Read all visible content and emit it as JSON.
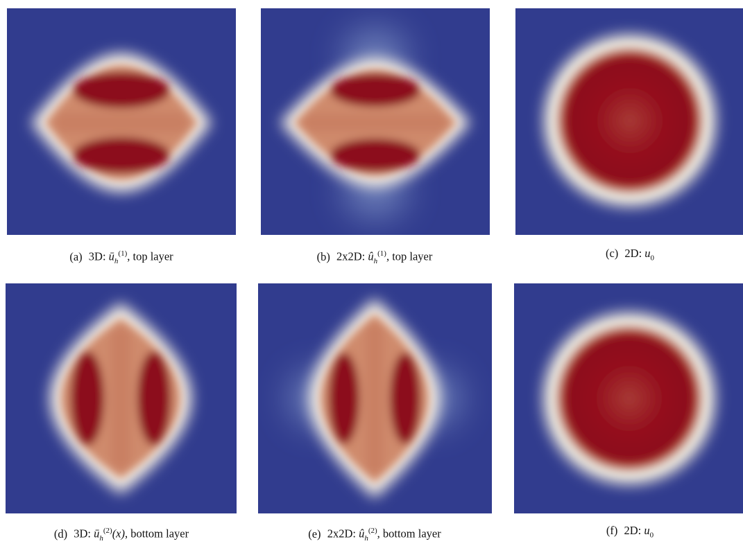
{
  "colors": {
    "background": "#313c8e",
    "high": "#8c0a1a",
    "mid": "#c87a5e",
    "edge": "#f2f0e8"
  },
  "panels": [
    {
      "label": "(a)",
      "prefix": "3D:",
      "symbol": "ū",
      "sub": "h",
      "sup": "(1)",
      "arg": "",
      "suffix": ", top layer",
      "field": "layer-horizontal"
    },
    {
      "label": "(b)",
      "prefix": "2x2D:",
      "symbol": "û",
      "sub": "h",
      "sup": "(1)",
      "arg": "",
      "suffix": ", top layer",
      "field": "layer-horizontal-halo"
    },
    {
      "label": "(c)",
      "prefix": "2D:",
      "symbol": "u",
      "sub": "0",
      "sup": "",
      "arg": "",
      "suffix": "",
      "field": "disk"
    },
    {
      "label": "(d)",
      "prefix": "3D:",
      "symbol": "ū",
      "sub": "h",
      "sup": "(2)",
      "arg": "(x)",
      "suffix": ", bottom layer",
      "field": "layer-vertical"
    },
    {
      "label": "(e)",
      "prefix": "2x2D:",
      "symbol": "û",
      "sub": "h",
      "sup": "(2)",
      "arg": "",
      "suffix": ", bottom layer",
      "field": "layer-vertical-halo"
    },
    {
      "label": "(f)",
      "prefix": "2D:",
      "symbol": "u",
      "sub": "0",
      "sup": "",
      "arg": "",
      "suffix": "",
      "field": "disk"
    }
  ]
}
